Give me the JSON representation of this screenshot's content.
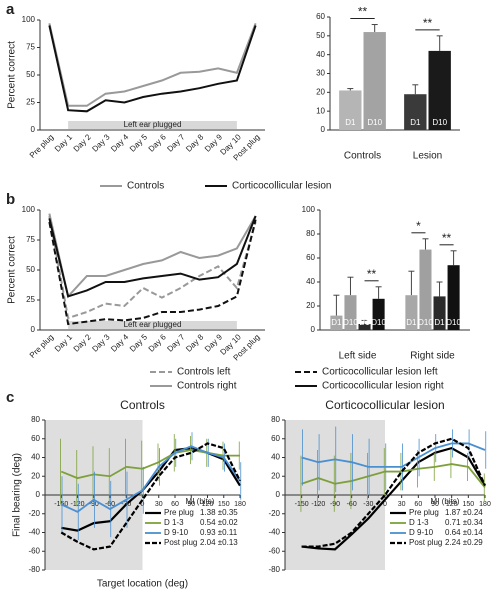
{
  "chart_data": [
    {
      "type": "line",
      "panel_label": "a",
      "ylabel": "Percent correct",
      "categories": [
        "Pre plug",
        "Day 1",
        "Day 2",
        "Day 3",
        "Day 4",
        "Day 5",
        "Day 6",
        "Day 7",
        "Day 8",
        "Day 9",
        "Day 10",
        "Post plug"
      ],
      "series": [
        {
          "name": "Controls",
          "color": "#999999",
          "dash": false,
          "values": [
            97,
            22,
            22,
            33,
            35,
            40,
            45,
            52,
            53,
            56,
            52,
            97
          ]
        },
        {
          "name": "Corticocollicular lesion",
          "color": "#111111",
          "dash": false,
          "values": [
            95,
            18,
            17,
            27,
            25,
            30,
            33,
            35,
            38,
            42,
            45,
            95
          ]
        }
      ],
      "ylim": [
        0,
        100
      ],
      "yticks": [
        0,
        25,
        50,
        75,
        100
      ],
      "annotation": "Left ear plugged",
      "legend": true
    },
    {
      "type": "bar",
      "categories": [
        "Controls",
        "Lesion"
      ],
      "series": [
        {
          "name": "D1",
          "colors": [
            "#b5b5b5",
            "#3a3a3a"
          ],
          "values": [
            21,
            19
          ],
          "errors": [
            1,
            5
          ]
        },
        {
          "name": "D10",
          "colors": [
            "#a3a3a3",
            "#1a1a1a"
          ],
          "values": [
            52,
            42
          ],
          "errors": [
            4,
            8
          ]
        }
      ],
      "ylim": [
        0,
        60
      ],
      "yticks": [
        0,
        10,
        20,
        30,
        40,
        50,
        60
      ],
      "annotations": [
        "**",
        "**"
      ]
    },
    {
      "type": "line",
      "panel_label": "b",
      "ylabel": "Percent correct",
      "categories": [
        "Pre plug",
        "Day 1",
        "Day 2",
        "Day 3",
        "Day 4",
        "Day 5",
        "Day 6",
        "Day 7",
        "Day 8",
        "Day 9",
        "Day 10",
        "Post plug"
      ],
      "series": [
        {
          "name": "Controls left",
          "color": "#999999",
          "dash": true,
          "values": [
            95,
            10,
            15,
            22,
            20,
            35,
            27,
            35,
            45,
            53,
            35,
            90
          ]
        },
        {
          "name": "Controls right",
          "color": "#999999",
          "dash": false,
          "values": [
            97,
            28,
            45,
            45,
            50,
            55,
            58,
            65,
            60,
            62,
            68,
            95
          ]
        },
        {
          "name": "Corticocollicular lesion left",
          "color": "#111111",
          "dash": true,
          "values": [
            90,
            5,
            7,
            9,
            8,
            10,
            15,
            15,
            17,
            20,
            28,
            92
          ]
        },
        {
          "name": "Corticocollicular lesion right",
          "color": "#111111",
          "dash": false,
          "values": [
            93,
            28,
            33,
            40,
            40,
            43,
            45,
            47,
            42,
            44,
            55,
            95
          ]
        }
      ],
      "ylim": [
        0,
        100
      ],
      "yticks": [
        0,
        25,
        50,
        75,
        100
      ],
      "annotation": "Left ear plugged",
      "legend": true
    },
    {
      "type": "bar",
      "categories": [
        "Left side",
        "Right side"
      ],
      "series": [
        {
          "name": "D1",
          "color": "#a8a8a8",
          "values": [
            12,
            29
          ],
          "errors": [
            17,
            20
          ]
        },
        {
          "name": "D10",
          "color": "#a0a0a0",
          "values": [
            29,
            67
          ],
          "errors": [
            15,
            9
          ]
        },
        {
          "name": "D1",
          "color": "#2a2a2a",
          "values": [
            5,
            28
          ],
          "errors": [
            3,
            12
          ]
        },
        {
          "name": "D10",
          "color": "#111111",
          "values": [
            26,
            54
          ],
          "errors": [
            10,
            12
          ]
        }
      ],
      "ylim": [
        0,
        100
      ],
      "yticks": [
        0,
        20,
        40,
        60,
        80,
        100
      ],
      "annotations": [
        "**",
        "*",
        "**"
      ]
    },
    {
      "type": "xyline",
      "panel_label": "c",
      "title": "Controls",
      "ylabel": "Final bearing (deg)",
      "xlabel": "Target location (deg)",
      "x": [
        -150,
        -120,
        -90,
        -60,
        -30,
        0,
        30,
        60,
        90,
        120,
        150,
        180
      ],
      "legend_title": "MI (bits)",
      "series": [
        {
          "name": "Pre plug",
          "mi": "1.38 ±0.35",
          "color": "#000000",
          "dash": false,
          "width": 2.2,
          "values": [
            -35,
            -38,
            -30,
            -28,
            -10,
            5,
            25,
            48,
            50,
            45,
            38,
            10
          ]
        },
        {
          "name": "D 1-3",
          "mi": "0.54 ±0.02",
          "color": "#7ea03c",
          "dash": false,
          "width": 1.8,
          "values": [
            25,
            18,
            22,
            20,
            30,
            28,
            35,
            45,
            48,
            45,
            42,
            42
          ],
          "errors": [
            35,
            30,
            30,
            30,
            30,
            30,
            20,
            20,
            15,
            15,
            15,
            15
          ]
        },
        {
          "name": "D 9-10",
          "mi": "0.93 ±0.11",
          "color": "#4a8fd0",
          "dash": false,
          "width": 1.8,
          "values": [
            -10,
            -18,
            -5,
            -15,
            -5,
            5,
            30,
            45,
            52,
            45,
            40,
            15
          ],
          "errors": [
            30,
            30,
            30,
            30,
            30,
            25,
            20,
            15,
            15,
            15,
            15,
            20
          ]
        },
        {
          "name": "Post plug",
          "mi": "2.04 ±0.13",
          "color": "#000000",
          "dash": true,
          "width": 2.2,
          "values": [
            -40,
            -50,
            -58,
            -55,
            -30,
            -5,
            20,
            40,
            45,
            55,
            50,
            15
          ]
        }
      ],
      "xlim": [
        -180,
        180
      ],
      "xticks": [
        -150,
        -120,
        -90,
        -60,
        -30,
        0,
        30,
        60,
        90,
        120,
        150,
        180
      ],
      "ylim": [
        -80,
        80
      ],
      "yticks": [
        -80,
        -60,
        -40,
        -20,
        0,
        20,
        40,
        60,
        80
      ],
      "shaded_xrange": [
        -180,
        0
      ]
    },
    {
      "type": "xyline",
      "title": "Corticocollicular lesion",
      "x": [
        -150,
        -120,
        -90,
        -60,
        -30,
        0,
        30,
        60,
        90,
        120,
        150,
        180
      ],
      "legend_title": "MI (bits)",
      "series": [
        {
          "name": "Pre plug",
          "mi": "1.87 ±0.24",
          "color": "#000000",
          "dash": false,
          "width": 2.2,
          "values": [
            -55,
            -57,
            -58,
            -42,
            -25,
            -5,
            15,
            35,
            45,
            50,
            40,
            10
          ]
        },
        {
          "name": "D 1-3",
          "mi": "0.71 ±0.34",
          "color": "#7ea03c",
          "dash": false,
          "width": 1.8,
          "values": [
            12,
            18,
            12,
            15,
            20,
            25,
            25,
            28,
            30,
            33,
            30,
            8
          ],
          "errors": [
            30,
            30,
            30,
            30,
            25,
            25,
            20,
            20,
            15,
            15,
            15,
            15
          ]
        },
        {
          "name": "D 9-10",
          "mi": "0.64 ±0.14",
          "color": "#4a8fd0",
          "dash": false,
          "width": 1.8,
          "values": [
            40,
            35,
            38,
            35,
            30,
            30,
            30,
            40,
            50,
            55,
            55,
            48
          ],
          "errors": [
            30,
            30,
            35,
            30,
            30,
            25,
            25,
            20,
            15,
            15,
            15,
            20
          ]
        },
        {
          "name": "Post plug",
          "mi": "2.24 ±0.29",
          "color": "#000000",
          "dash": true,
          "width": 2.2,
          "values": [
            -55,
            -55,
            -52,
            -40,
            -20,
            0,
            25,
            45,
            55,
            60,
            50,
            10
          ]
        }
      ],
      "xlim": [
        -180,
        180
      ],
      "xticks": [
        -150,
        -120,
        -90,
        -60,
        -30,
        0,
        30,
        60,
        90,
        120,
        150,
        180
      ],
      "ylim": [
        -80,
        80
      ],
      "yticks": [
        -80,
        -60,
        -40,
        -20,
        0,
        20,
        40,
        60,
        80
      ],
      "shaded_xrange": [
        -180,
        0
      ]
    }
  ]
}
